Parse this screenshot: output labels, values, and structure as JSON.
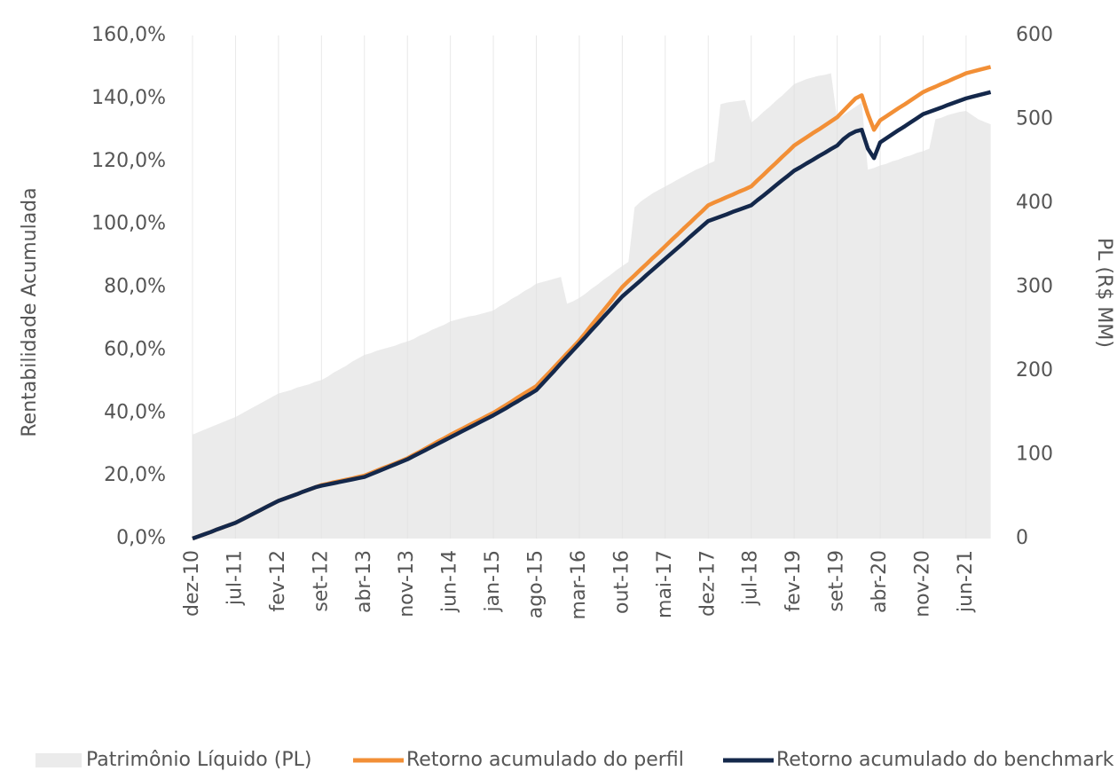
{
  "chart_data": {
    "type": "line",
    "y_label": "Rentabilidade Acumulada",
    "y2_label": "PL (R$ MM)",
    "categories": [
      "dez-10",
      null,
      null,
      null,
      null,
      null,
      null,
      "jul-11",
      null,
      null,
      null,
      null,
      null,
      null,
      "fev-12",
      null,
      null,
      null,
      null,
      null,
      null,
      "set-12",
      null,
      null,
      null,
      null,
      null,
      null,
      "abr-13",
      null,
      null,
      null,
      null,
      null,
      null,
      "nov-13",
      null,
      null,
      null,
      null,
      null,
      null,
      "jun-14",
      null,
      null,
      null,
      null,
      null,
      null,
      "jan-15",
      null,
      null,
      null,
      null,
      null,
      null,
      "ago-15",
      null,
      null,
      null,
      null,
      null,
      null,
      "mar-16",
      null,
      null,
      null,
      null,
      null,
      null,
      "out-16",
      null,
      null,
      null,
      null,
      null,
      null,
      "mai-17",
      null,
      null,
      null,
      null,
      null,
      null,
      "dez-17",
      null,
      null,
      null,
      null,
      null,
      null,
      "jul-18",
      null,
      null,
      null,
      null,
      null,
      null,
      "fev-19",
      null,
      null,
      null,
      null,
      null,
      null,
      "set-19",
      null,
      null,
      null,
      null,
      null,
      null,
      "abr-20",
      null,
      null,
      null,
      null,
      null,
      null,
      "nov-20",
      null,
      null,
      null,
      null,
      null,
      null,
      "jun-21",
      null,
      null,
      null,
      null
    ],
    "series": [
      {
        "name": "Patrimônio Líquido (PL)",
        "color": "#ebebeb",
        "kind": "area",
        "axis": "y2",
        "values": [
          124,
          127,
          130,
          133,
          136,
          139,
          142,
          145,
          149,
          153,
          157,
          161,
          165,
          169,
          173,
          175,
          177,
          180,
          182,
          184,
          187,
          189,
          193,
          198,
          202,
          206,
          211,
          215,
          219,
          221,
          224,
          226,
          228,
          230,
          233,
          235,
          238,
          242,
          245,
          249,
          252,
          255,
          259,
          261,
          263,
          265,
          266,
          268,
          270,
          272,
          277,
          281,
          286,
          290,
          295,
          299,
          304,
          306,
          308,
          310,
          312,
          280,
          283,
          287,
          292,
          298,
          303,
          309,
          314,
          320,
          325,
          330,
          395,
          402,
          407,
          412,
          416,
          420,
          424,
          428,
          432,
          436,
          440,
          443,
          447,
          450,
          518,
          520,
          521,
          522,
          523,
          496,
          502,
          509,
          515,
          522,
          528,
          535,
          542,
          545,
          548,
          550,
          552,
          553,
          555,
          500,
          505,
          510,
          515,
          520,
          440,
          442,
          445,
          447,
          450,
          452,
          455,
          457,
          460,
          462,
          465,
          500,
          502,
          505,
          507,
          509,
          510,
          505,
          500,
          497,
          494
        ]
      },
      {
        "name": "Retorno acumulado do perfil",
        "color": "#f28f36",
        "kind": "line",
        "values": [
          0,
          0.7,
          1.4,
          2.1,
          2.9,
          3.6,
          4.3,
          5,
          6,
          7,
          8,
          9,
          10,
          11,
          12,
          12.7,
          13.4,
          14.1,
          14.9,
          15.6,
          16.3,
          17,
          17.4,
          17.9,
          18.3,
          18.7,
          19.1,
          19.6,
          20,
          20.8,
          21.6,
          22.4,
          23.1,
          23.9,
          24.7,
          25.5,
          26.6,
          27.6,
          28.7,
          29.8,
          30.9,
          31.9,
          33,
          34,
          35,
          36,
          37,
          38,
          39,
          40,
          41.2,
          42.4,
          43.6,
          44.9,
          46.1,
          47.3,
          48.5,
          50.6,
          52.6,
          54.7,
          56.8,
          58.9,
          60.9,
          63,
          65.4,
          67.9,
          70.3,
          72.7,
          75.1,
          77.6,
          80,
          81.9,
          83.7,
          85.6,
          87.4,
          89.3,
          91.1,
          93,
          94.9,
          96.7,
          98.6,
          100.4,
          102.3,
          104.1,
          106,
          106.9,
          107.7,
          108.6,
          109.4,
          110.3,
          111.1,
          112,
          113.9,
          115.7,
          117.6,
          119.4,
          121.3,
          123.1,
          125,
          126.3,
          127.6,
          128.9,
          130.1,
          131.4,
          132.7,
          134,
          136,
          138,
          140,
          141,
          135,
          130,
          133,
          134.3,
          135.6,
          136.9,
          138.1,
          139.4,
          140.7,
          142,
          142.9,
          143.7,
          144.6,
          145.4,
          146.3,
          147.1,
          148,
          148.5,
          149,
          149.5,
          150
        ]
      },
      {
        "name": "Retorno acumulado do benchmark",
        "color": "#14284b",
        "kind": "line",
        "values": [
          0,
          0.7,
          1.4,
          2.1,
          2.9,
          3.6,
          4.3,
          5,
          6,
          7,
          8,
          9,
          10,
          11,
          12,
          12.7,
          13.4,
          14.1,
          14.9,
          15.6,
          16.3,
          16.8,
          17.2,
          17.6,
          18,
          18.4,
          18.8,
          19.2,
          19.6,
          20.4,
          21.2,
          22,
          22.8,
          23.6,
          24.4,
          25.2,
          26.2,
          27.2,
          28.2,
          29.2,
          30.2,
          31.2,
          32.2,
          33.2,
          34.2,
          35.2,
          36.2,
          37.2,
          38.2,
          39.2,
          40.3,
          41.4,
          42.6,
          43.7,
          44.9,
          46,
          47.2,
          49.3,
          51.4,
          53.5,
          55.7,
          57.8,
          59.9,
          62,
          64.1,
          66.3,
          68.4,
          70.6,
          72.7,
          74.9,
          77,
          78.7,
          80.4,
          82.1,
          83.9,
          85.6,
          87.3,
          89,
          90.7,
          92.4,
          94.1,
          95.9,
          97.6,
          99.3,
          101,
          101.7,
          102.4,
          103.1,
          103.9,
          104.6,
          105.3,
          106,
          107.6,
          109.1,
          110.7,
          112.3,
          113.9,
          115.4,
          117,
          118.1,
          119.3,
          120.4,
          121.6,
          122.7,
          123.9,
          125,
          127,
          128.5,
          129.5,
          130,
          124,
          121,
          126,
          127.3,
          128.6,
          129.9,
          131.1,
          132.4,
          133.7,
          135,
          135.7,
          136.4,
          137.1,
          137.9,
          138.6,
          139.3,
          140,
          140.5,
          141,
          141.5,
          142
        ]
      }
    ],
    "ylim": [
      0,
      160
    ],
    "yticks": [
      {
        "value": 0,
        "label": "0,0%"
      },
      {
        "value": 20,
        "label": "20,0%"
      },
      {
        "value": 40,
        "label": "40,0%"
      },
      {
        "value": 60,
        "label": "60,0%"
      },
      {
        "value": 80,
        "label": "80,0%"
      },
      {
        "value": 100,
        "label": "100,0%"
      },
      {
        "value": 120,
        "label": "120,0%"
      },
      {
        "value": 140,
        "label": "140,0%"
      },
      {
        "value": 160,
        "label": "160,0%"
      }
    ],
    "y2lim": [
      0,
      600
    ],
    "y2ticks": [
      0,
      100,
      200,
      300,
      400,
      500,
      600
    ],
    "grid": true
  }
}
